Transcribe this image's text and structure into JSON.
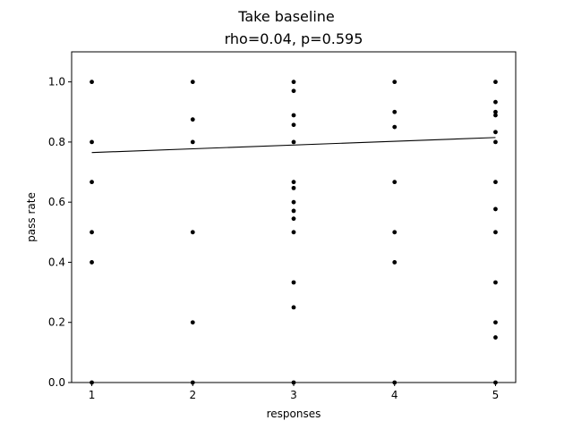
{
  "chart_data": {
    "type": "scatter",
    "title": "Take baseline",
    "subtitle": "rho=0.04, p=0.595",
    "xlabel": "responses",
    "ylabel": "pass rate",
    "xlim": [
      0.8,
      5.2
    ],
    "ylim": [
      0.0,
      1.1
    ],
    "xticks": [
      "1",
      "2",
      "3",
      "4",
      "5"
    ],
    "yticks": [
      "0.0",
      "0.2",
      "0.4",
      "0.6",
      "0.8",
      "1.0"
    ],
    "grid": false,
    "legend": "none",
    "marker_color": "#000000",
    "points": [
      {
        "x": 1,
        "y": 1.0
      },
      {
        "x": 1,
        "y": 0.8
      },
      {
        "x": 1,
        "y": 0.667
      },
      {
        "x": 1,
        "y": 0.5
      },
      {
        "x": 1,
        "y": 0.4
      },
      {
        "x": 1,
        "y": 0.0
      },
      {
        "x": 2,
        "y": 1.0
      },
      {
        "x": 2,
        "y": 0.875
      },
      {
        "x": 2,
        "y": 0.8
      },
      {
        "x": 2,
        "y": 0.5
      },
      {
        "x": 2,
        "y": 0.2
      },
      {
        "x": 2,
        "y": 0.0
      },
      {
        "x": 3,
        "y": 1.0
      },
      {
        "x": 3,
        "y": 0.97
      },
      {
        "x": 3,
        "y": 0.889
      },
      {
        "x": 3,
        "y": 0.857
      },
      {
        "x": 3,
        "y": 0.8
      },
      {
        "x": 3,
        "y": 0.667
      },
      {
        "x": 3,
        "y": 0.647
      },
      {
        "x": 3,
        "y": 0.6
      },
      {
        "x": 3,
        "y": 0.571
      },
      {
        "x": 3,
        "y": 0.545
      },
      {
        "x": 3,
        "y": 0.5
      },
      {
        "x": 3,
        "y": 0.333
      },
      {
        "x": 3,
        "y": 0.25
      },
      {
        "x": 3,
        "y": 0.0
      },
      {
        "x": 4,
        "y": 1.0
      },
      {
        "x": 4,
        "y": 0.9
      },
      {
        "x": 4,
        "y": 0.85
      },
      {
        "x": 4,
        "y": 0.667
      },
      {
        "x": 4,
        "y": 0.5
      },
      {
        "x": 4,
        "y": 0.4
      },
      {
        "x": 4,
        "y": 0.0
      },
      {
        "x": 5,
        "y": 1.0
      },
      {
        "x": 5,
        "y": 0.933
      },
      {
        "x": 5,
        "y": 0.9
      },
      {
        "x": 5,
        "y": 0.889
      },
      {
        "x": 5,
        "y": 0.833
      },
      {
        "x": 5,
        "y": 0.8
      },
      {
        "x": 5,
        "y": 0.667
      },
      {
        "x": 5,
        "y": 0.577
      },
      {
        "x": 5,
        "y": 0.5
      },
      {
        "x": 5,
        "y": 0.333
      },
      {
        "x": 5,
        "y": 0.2
      },
      {
        "x": 5,
        "y": 0.15
      },
      {
        "x": 5,
        "y": 0.0
      }
    ],
    "trend_line": {
      "x": [
        1,
        5
      ],
      "y": [
        0.765,
        0.815
      ]
    }
  }
}
